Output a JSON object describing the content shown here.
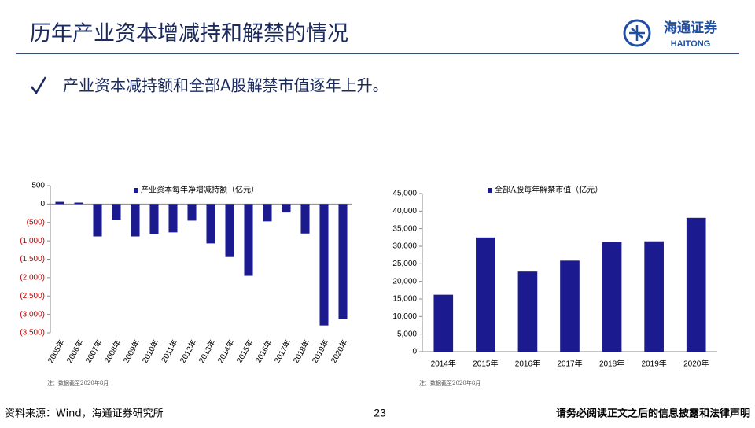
{
  "header": {
    "title": "历年产业资本增减持和解禁的情况",
    "logo_cn": "海通证券",
    "logo_en": "HAITONG"
  },
  "bullet": "产业资本减持额和全部A股解禁市值逐年上升。",
  "chart_data": [
    {
      "type": "bar",
      "legend": "产业资本每年净增减持额（亿元）",
      "color": "#1b1b8f",
      "negative_label_color": "#c00000",
      "categories": [
        "2005年",
        "2006年",
        "2007年",
        "2008年",
        "2009年",
        "2010年",
        "2011年",
        "2012年",
        "2013年",
        "2014年",
        "2015年",
        "2016年",
        "2017年",
        "2018年",
        "2019年",
        "2020年"
      ],
      "values": [
        60,
        40,
        -880,
        -430,
        -880,
        -810,
        -770,
        -450,
        -1070,
        -1440,
        -1950,
        -470,
        -230,
        -800,
        -3300,
        -3130
      ],
      "ylim": [
        -3500,
        500
      ],
      "yticks": [
        500,
        0,
        {
          "value": -500,
          "label": "(500)"
        },
        {
          "value": -1000,
          "label": "(1,000)"
        },
        {
          "value": -1500,
          "label": "(1,500)"
        },
        {
          "value": -2000,
          "label": "(2,000)"
        },
        {
          "value": -2500,
          "label": "(2,500)"
        },
        {
          "value": -3000,
          "label": "(3,000)"
        },
        {
          "value": -3500,
          "label": "(3,500)"
        }
      ],
      "note": "注：数据截至2020年8月"
    },
    {
      "type": "bar",
      "legend": "全部A股每年解禁市值（亿元）",
      "color": "#1b1b8f",
      "categories": [
        "2014年",
        "2015年",
        "2016年",
        "2017年",
        "2018年",
        "2019年",
        "2020年"
      ],
      "values": [
        16200,
        32500,
        22800,
        25900,
        31200,
        31400,
        38100
      ],
      "ylim": [
        0,
        45000
      ],
      "yticks": [
        0,
        {
          "value": 5000,
          "label": "5,000"
        },
        {
          "value": 10000,
          "label": "10,000"
        },
        {
          "value": 15000,
          "label": "15,000"
        },
        {
          "value": 20000,
          "label": "20,000"
        },
        {
          "value": 25000,
          "label": "25,000"
        },
        {
          "value": 30000,
          "label": "30,000"
        },
        {
          "value": 35000,
          "label": "35,000"
        },
        {
          "value": 40000,
          "label": "40,000"
        },
        {
          "value": 45000,
          "label": "45,000"
        }
      ],
      "note": "注：数据截至2020年8月"
    }
  ],
  "footer": {
    "source": "资料来源：Wind，海通证券研究所",
    "page": "23",
    "disclaimer": "请务必阅读正文之后的信息披露和法律声明"
  }
}
